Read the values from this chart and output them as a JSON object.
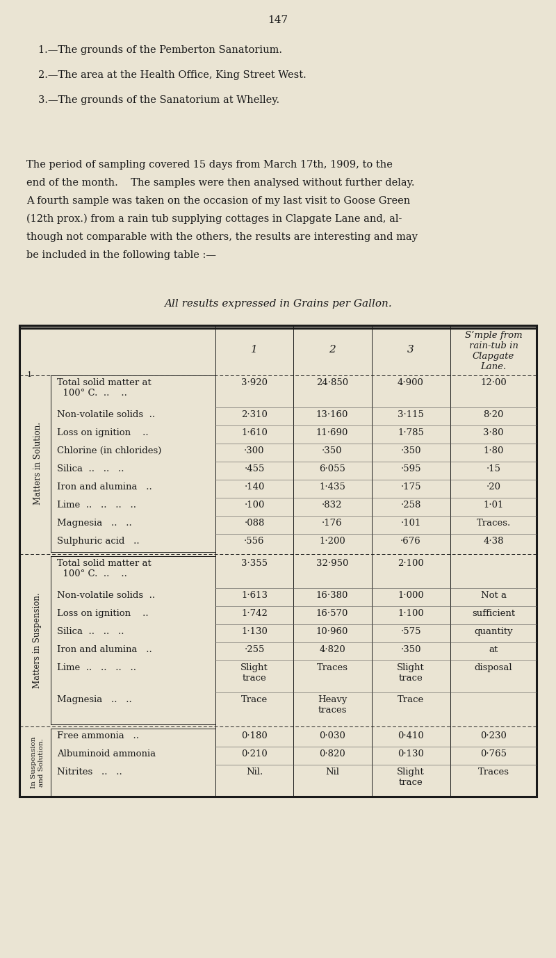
{
  "bg_color": "#EAE4D3",
  "text_color": "#1a1a1a",
  "page_number": "147",
  "lines": [
    "1.—The grounds of the Pemberton Sanatorium.",
    "2.—The area at the Health Office, King Street West.",
    "3.—The grounds of the Sanatorium at Whelley."
  ],
  "para_lines": [
    "The period of sampling covered 15 days from March 17th, 1909, to the",
    "end of the month.    The samples were then analysed without further delay.",
    "A fourth sample was taken on the occasion of my last visit to Goose Green",
    "(12th prox.) from a rain tub supplying cottages in Clapgate Lane and, al­",
    "though not comparable with the others, the results are interesting and may",
    "be included in the following table :—"
  ],
  "table_caption": "All results expressed in Grains per Gallon.",
  "col_headers": [
    "1",
    "2",
    "3",
    "S’mple from\nrain-tub in\nClapgate\nLane."
  ],
  "rows": [
    {
      "label": "Total solid matter at\n  100° C.  ..    ..",
      "vals": [
        "3·920",
        "24·850",
        "4·900",
        "12·00"
      ],
      "section": 1,
      "group": "A"
    },
    {
      "label": "Non-volatile solids  ..",
      "vals": [
        "2·310",
        "13·160",
        "3·115",
        "8·20"
      ],
      "section": 1,
      "group": "A"
    },
    {
      "label": "Loss on ignition    ..",
      "vals": [
        "1·610",
        "11·690",
        "1·785",
        "3·80"
      ],
      "section": 1,
      "group": "A"
    },
    {
      "label": "Chlorine (in chlorides)",
      "vals": [
        "·300",
        "·350",
        "·350",
        "1·80"
      ],
      "section": 1,
      "group": "B"
    },
    {
      "label": "Silica  ..   ..   ..",
      "vals": [
        "·455",
        "6·055",
        "·595",
        "·15"
      ],
      "section": 1,
      "group": "B"
    },
    {
      "label": "Iron and alumina   ..",
      "vals": [
        "·140",
        "1·435",
        "·175",
        "·20"
      ],
      "section": 1,
      "group": "B"
    },
    {
      "label": "Lime  ..   ..   ..   ..",
      "vals": [
        "·100",
        "·832",
        "·258",
        "1·01"
      ],
      "section": 1,
      "group": "B"
    },
    {
      "label": "Magnesia   ..   ..",
      "vals": [
        "·088",
        "·176",
        "·101",
        "Traces."
      ],
      "section": 1,
      "group": "B"
    },
    {
      "label": "Sulphuric acid   ..",
      "vals": [
        "·556",
        "1·200",
        "·676",
        "4·38"
      ],
      "section": 1,
      "group": "B"
    },
    {
      "label": "Total solid matter at\n  100° C.  ..    ..",
      "vals": [
        "3·355",
        "32·950",
        "2·100",
        ""
      ],
      "section": 2,
      "group": "C"
    },
    {
      "label": "Non-volatile solids  ..",
      "vals": [
        "1·613",
        "16·380",
        "1·000",
        "Not a"
      ],
      "section": 2,
      "group": "C"
    },
    {
      "label": "Loss on ignition    ..",
      "vals": [
        "1·742",
        "16·570",
        "1·100",
        "sufficient"
      ],
      "section": 2,
      "group": "C"
    },
    {
      "label": "Silica  ..   ..   ..",
      "vals": [
        "1·130",
        "10·960",
        "·575",
        "quantity"
      ],
      "section": 2,
      "group": "C"
    },
    {
      "label": "Iron and alumina   ..",
      "vals": [
        "·255",
        "4·820",
        "·350",
        "at"
      ],
      "section": 2,
      "group": "C"
    },
    {
      "label": "Lime  ..   ..   ..   ..",
      "vals": [
        "Slight\ntrace",
        "Traces",
        "Slight\ntrace",
        "disposal"
      ],
      "section": 2,
      "group": "C"
    },
    {
      "label": "Magnesia   ..   ..",
      "vals": [
        "Trace",
        "Heavy\ntraces",
        "Trace",
        ""
      ],
      "section": 2,
      "group": "C"
    },
    {
      "label": "Free ammonia   ..",
      "vals": [
        "0·180",
        "0·030",
        "0·410",
        "0·230"
      ],
      "section": 3,
      "group": "D"
    },
    {
      "label": "Albuminoid ammonia",
      "vals": [
        "0·210",
        "0·820",
        "0·130",
        "0·765"
      ],
      "section": 3,
      "group": "D"
    },
    {
      "label": "Nitrites   ..   ..",
      "vals": [
        "Nil.",
        "Nil",
        "Slight\ntrace",
        "Traces"
      ],
      "section": 3,
      "group": "D"
    }
  ]
}
